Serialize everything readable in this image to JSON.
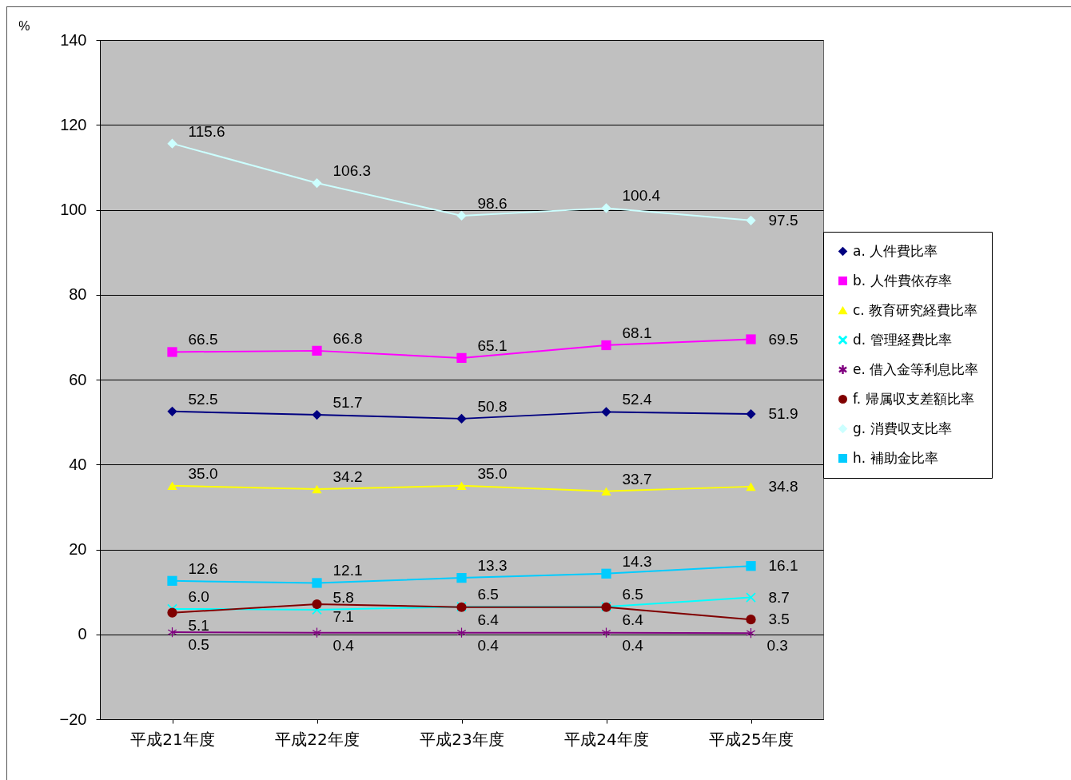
{
  "chart_data": {
    "type": "line",
    "ylabel": "%",
    "categories": [
      "平成21年度",
      "平成22年度",
      "平成23年度",
      "平成24年度",
      "平成25年度"
    ],
    "series": [
      {
        "name": "a. 人件費比率",
        "color": "#000080",
        "marker": "diamond",
        "values": [
          52.5,
          51.7,
          50.8,
          52.4,
          51.9
        ],
        "value_labels": [
          "52.5",
          "51.7",
          "50.8",
          "52.4",
          "51.9"
        ]
      },
      {
        "name": "b. 人件費依存率",
        "color": "#ff00ff",
        "marker": "square",
        "values": [
          66.5,
          66.8,
          65.1,
          68.1,
          69.5
        ],
        "value_labels": [
          "66.5",
          "66.8",
          "65.1",
          "68.1",
          "69.5"
        ]
      },
      {
        "name": "c. 教育研究経費比率",
        "color": "#ffff00",
        "marker": "triangle",
        "values": [
          35.0,
          34.2,
          35.0,
          33.7,
          34.8
        ],
        "value_labels": [
          "35.0",
          "34.2",
          "35.0",
          "33.7",
          "34.8"
        ]
      },
      {
        "name": "d. 管理経費比率",
        "color": "#00ffff",
        "marker": "cross",
        "values": [
          6.0,
          5.8,
          6.5,
          6.5,
          8.7
        ],
        "value_labels": [
          "6.0",
          "5.8",
          "6.5",
          "6.5",
          "8.7"
        ]
      },
      {
        "name": "e. 借入金等利息比率",
        "color": "#800080",
        "marker": "star",
        "values": [
          0.5,
          0.4,
          0.4,
          0.4,
          0.3
        ],
        "value_labels": [
          "0.5",
          "0.4",
          "0.4",
          "0.4",
          "0.3"
        ]
      },
      {
        "name": "f. 帰属収支差額比率",
        "color": "#800000",
        "marker": "circle",
        "values": [
          5.1,
          7.1,
          6.4,
          6.4,
          3.5
        ],
        "value_labels": [
          "5.1",
          "7.1",
          "6.4",
          "6.4",
          "3.5"
        ]
      },
      {
        "name": "g. 消費収支比率",
        "color": "#ccffff",
        "marker": "diamond",
        "values": [
          115.6,
          106.3,
          98.6,
          100.4,
          97.5
        ],
        "value_labels": [
          "115.6",
          "106.3",
          "98.6",
          "100.4",
          "97.5"
        ]
      },
      {
        "name": "h. 補助金比率",
        "color": "#00ccff",
        "marker": "square",
        "values": [
          12.6,
          12.1,
          13.3,
          14.3,
          16.1
        ],
        "value_labels": [
          "12.6",
          "12.1",
          "13.3",
          "14.3",
          "16.1"
        ]
      }
    ],
    "ylim": [
      -20,
      140
    ],
    "yticks": [
      -20,
      0,
      20,
      40,
      60,
      80,
      100,
      120,
      140
    ],
    "grid": "y",
    "legend": "right",
    "line_style": "solid"
  }
}
